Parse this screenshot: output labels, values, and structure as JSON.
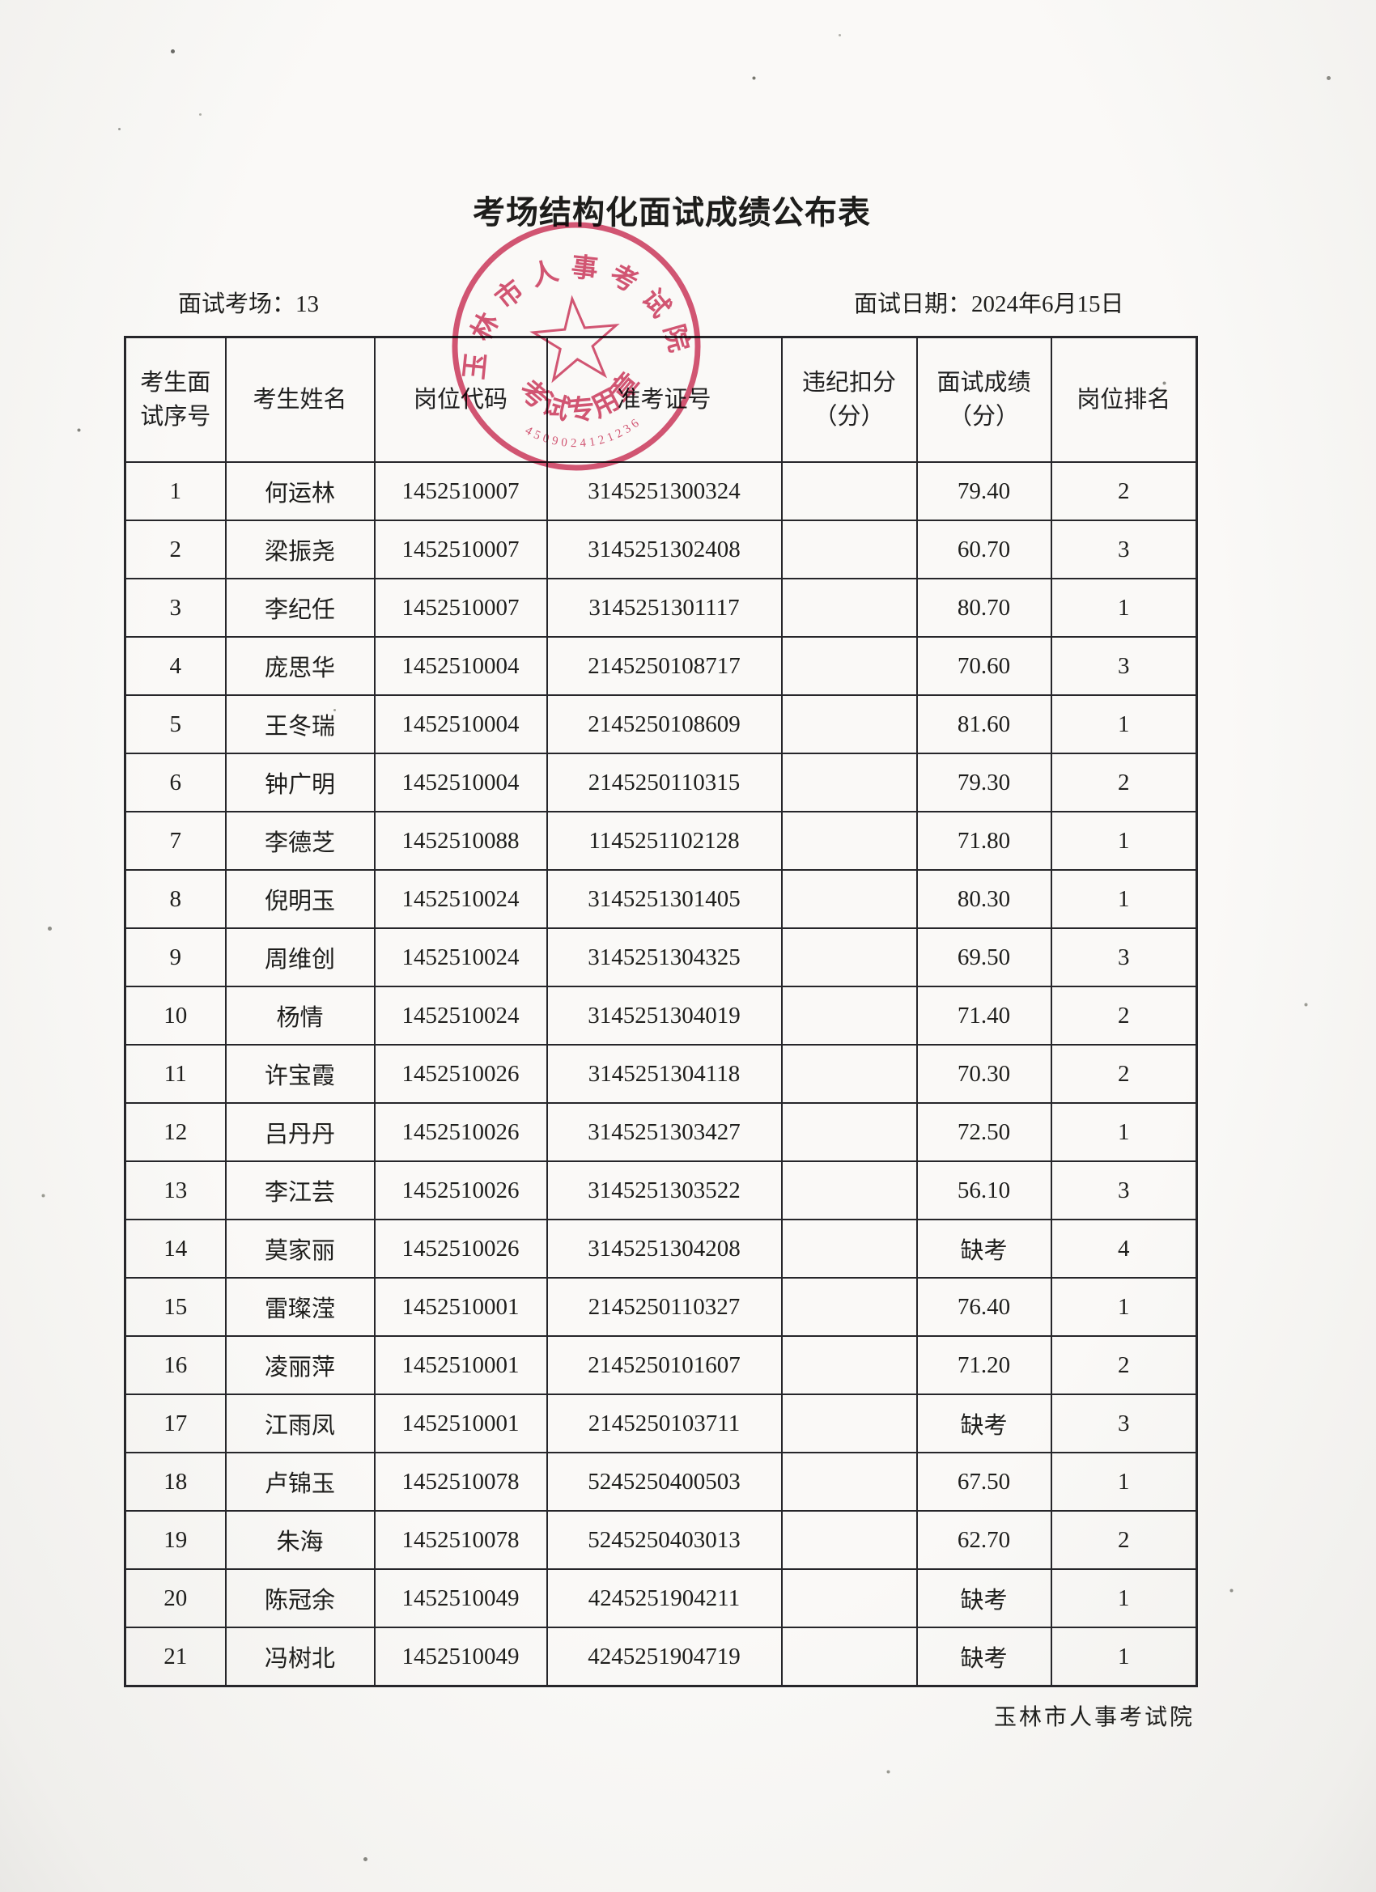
{
  "document": {
    "title": "考场结构化面试成绩公布表",
    "venue": {
      "label": "面试考场：",
      "value": "13"
    },
    "date": {
      "label": "面试日期：",
      "value": "2024年6月15日"
    },
    "footer": "玉林市人事考试院"
  },
  "stamp": {
    "arc_text": "玉林市人事考试院",
    "bottom_text": "考试专用章",
    "code": "4509024121236",
    "color": "#cf3f63"
  },
  "table": {
    "headers": {
      "seq": "考生面\n试序号",
      "name": "考生姓名",
      "job_code": "岗位代码",
      "ticket": "准考证号",
      "penalty": "违纪扣分\n（分）",
      "score": "面试成绩\n（分）",
      "rank": "岗位排名"
    },
    "rows": [
      {
        "seq": "1",
        "name": "何运林",
        "job_code": "1452510007",
        "ticket": "3145251300324",
        "penalty": "",
        "score": "79.40",
        "rank": "2"
      },
      {
        "seq": "2",
        "name": "梁振尧",
        "job_code": "1452510007",
        "ticket": "3145251302408",
        "penalty": "",
        "score": "60.70",
        "rank": "3"
      },
      {
        "seq": "3",
        "name": "李纪任",
        "job_code": "1452510007",
        "ticket": "3145251301117",
        "penalty": "",
        "score": "80.70",
        "rank": "1"
      },
      {
        "seq": "4",
        "name": "庞思华",
        "job_code": "1452510004",
        "ticket": "2145250108717",
        "penalty": "",
        "score": "70.60",
        "rank": "3"
      },
      {
        "seq": "5",
        "name": "王冬瑞",
        "job_code": "1452510004",
        "ticket": "2145250108609",
        "penalty": "",
        "score": "81.60",
        "rank": "1"
      },
      {
        "seq": "6",
        "name": "钟广明",
        "job_code": "1452510004",
        "ticket": "2145250110315",
        "penalty": "",
        "score": "79.30",
        "rank": "2"
      },
      {
        "seq": "7",
        "name": "李德芝",
        "job_code": "1452510088",
        "ticket": "1145251102128",
        "penalty": "",
        "score": "71.80",
        "rank": "1"
      },
      {
        "seq": "8",
        "name": "倪明玉",
        "job_code": "1452510024",
        "ticket": "3145251301405",
        "penalty": "",
        "score": "80.30",
        "rank": "1"
      },
      {
        "seq": "9",
        "name": "周维创",
        "job_code": "1452510024",
        "ticket": "3145251304325",
        "penalty": "",
        "score": "69.50",
        "rank": "3"
      },
      {
        "seq": "10",
        "name": "杨情",
        "job_code": "1452510024",
        "ticket": "3145251304019",
        "penalty": "",
        "score": "71.40",
        "rank": "2"
      },
      {
        "seq": "11",
        "name": "许宝霞",
        "job_code": "1452510026",
        "ticket": "3145251304118",
        "penalty": "",
        "score": "70.30",
        "rank": "2"
      },
      {
        "seq": "12",
        "name": "吕丹丹",
        "job_code": "1452510026",
        "ticket": "3145251303427",
        "penalty": "",
        "score": "72.50",
        "rank": "1"
      },
      {
        "seq": "13",
        "name": "李江芸",
        "job_code": "1452510026",
        "ticket": "3145251303522",
        "penalty": "",
        "score": "56.10",
        "rank": "3"
      },
      {
        "seq": "14",
        "name": "莫家丽",
        "job_code": "1452510026",
        "ticket": "3145251304208",
        "penalty": "",
        "score": "缺考",
        "rank": "4"
      },
      {
        "seq": "15",
        "name": "雷璨滢",
        "job_code": "1452510001",
        "ticket": "2145250110327",
        "penalty": "",
        "score": "76.40",
        "rank": "1"
      },
      {
        "seq": "16",
        "name": "凌丽萍",
        "job_code": "1452510001",
        "ticket": "2145250101607",
        "penalty": "",
        "score": "71.20",
        "rank": "2"
      },
      {
        "seq": "17",
        "name": "江雨凤",
        "job_code": "1452510001",
        "ticket": "2145250103711",
        "penalty": "",
        "score": "缺考",
        "rank": "3"
      },
      {
        "seq": "18",
        "name": "卢锦玉",
        "job_code": "1452510078",
        "ticket": "5245250400503",
        "penalty": "",
        "score": "67.50",
        "rank": "1"
      },
      {
        "seq": "19",
        "name": "朱海",
        "job_code": "1452510078",
        "ticket": "5245250403013",
        "penalty": "",
        "score": "62.70",
        "rank": "2"
      },
      {
        "seq": "20",
        "name": "陈冠余",
        "job_code": "1452510049",
        "ticket": "4245251904211",
        "penalty": "",
        "score": "缺考",
        "rank": "1"
      },
      {
        "seq": "21",
        "name": "冯树北",
        "job_code": "1452510049",
        "ticket": "4245251904719",
        "penalty": "",
        "score": "缺考",
        "rank": "1"
      }
    ]
  }
}
